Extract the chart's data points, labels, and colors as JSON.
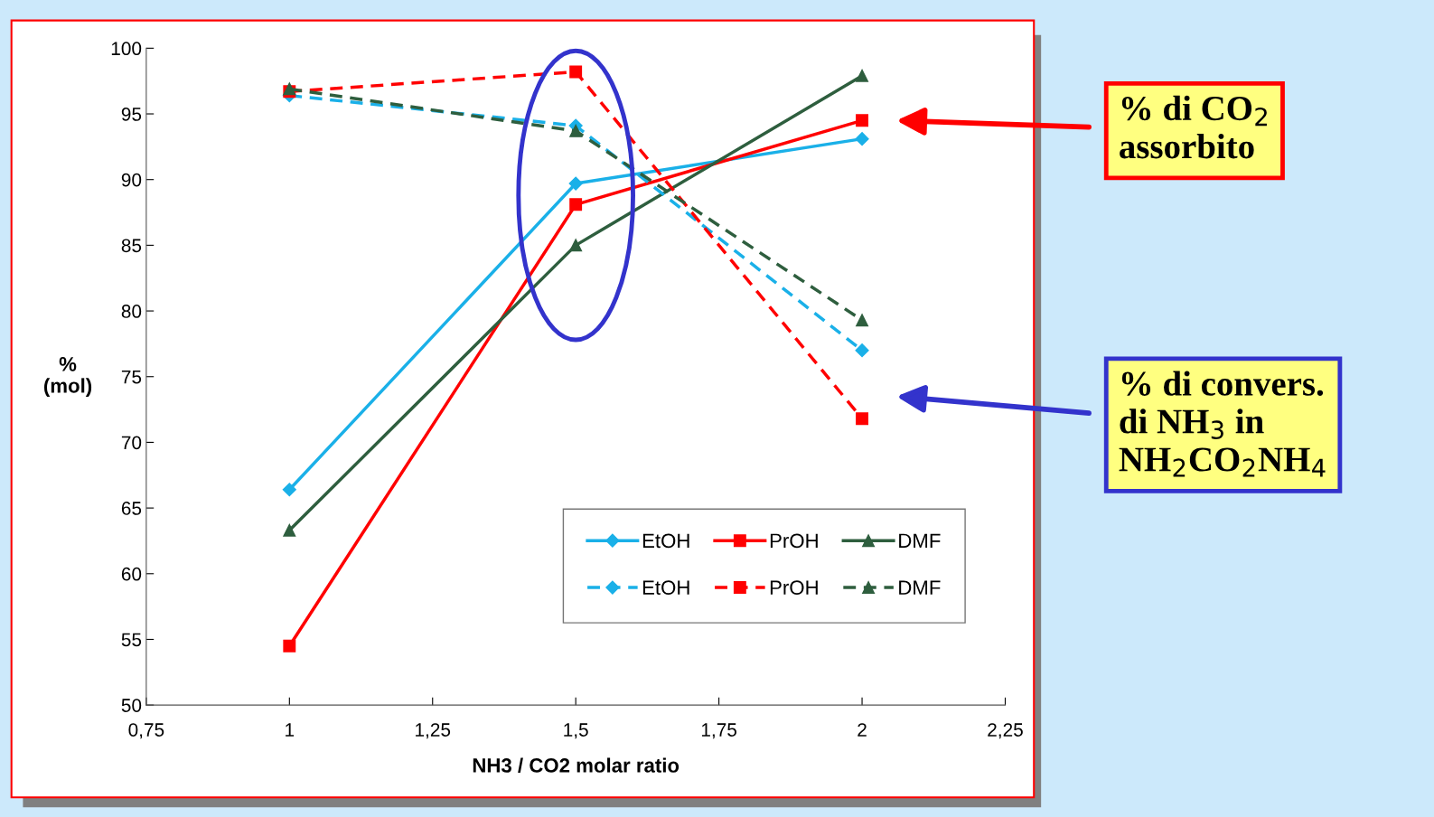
{
  "chart_data": {
    "type": "line",
    "x": [
      1,
      1.5,
      2
    ],
    "series": [
      {
        "name": "EtOH",
        "color": "#1ab0e8",
        "values": [
          66.4,
          89.7,
          93.1
        ],
        "marker": "diamond",
        "line_style": "solid"
      },
      {
        "name": "PrOH",
        "color": "#ff0000",
        "values": [
          54.5,
          88.1,
          94.5
        ],
        "marker": "square",
        "line_style": "solid"
      },
      {
        "name": "DMF",
        "color": "#2e5e3e",
        "values": [
          63.3,
          85.0,
          97.9
        ],
        "marker": "triangle",
        "line_style": "solid"
      },
      {
        "name": "EtOH",
        "color": "#1ab0e8",
        "values": [
          96.4,
          94.1,
          77.0
        ],
        "marker": "diamond",
        "line_style": "dashed"
      },
      {
        "name": "PrOH",
        "color": "#ff0000",
        "values": [
          96.7,
          98.2,
          71.8
        ],
        "marker": "square",
        "line_style": "dashed"
      },
      {
        "name": "DMF",
        "color": "#2e5e3e",
        "values": [
          96.9,
          93.7,
          79.3
        ],
        "marker": "triangle",
        "line_style": "dashed"
      }
    ],
    "xlabel": "NH3 / CO2 molar ratio",
    "ylabel": "%\n(mol)",
    "xlim": [
      0.75,
      2.25
    ],
    "xticks": [
      {
        "value": 0.75,
        "label": "0,75"
      },
      1,
      {
        "value": 1.25,
        "label": "1,25"
      },
      {
        "value": 1.5,
        "label": "1,5"
      },
      {
        "value": 1.75,
        "label": "1,75"
      },
      2,
      {
        "value": 2.25,
        "label": "2,25"
      }
    ],
    "ylim": [
      50,
      100
    ],
    "yticks": [
      50,
      55,
      60,
      65,
      70,
      75,
      80,
      85,
      90,
      95,
      100
    ],
    "grid": false,
    "legend": "bottom right",
    "annotations": [
      "% di CO$_{2}$ assorbito",
      "% di convers. di NH$_{3}$ in NH$_{2}$CO$_{2}$NH$_{4}$"
    ]
  }
}
